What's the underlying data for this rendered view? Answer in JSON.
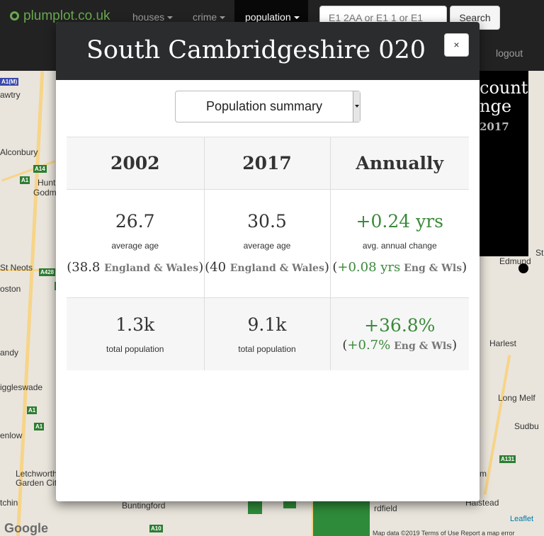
{
  "navbar": {
    "brand": "plumplot.co.uk",
    "items": [
      {
        "label": "houses"
      },
      {
        "label": "crime"
      },
      {
        "label": "population"
      }
    ],
    "search_placeholder": "E1 2AA or E1 1 or E1",
    "search_button": "Search",
    "logout": "logout"
  },
  "map": {
    "labels": [
      "Alconbury",
      "Hunt",
      "Godm",
      "St Neots",
      "oston",
      "andy",
      "iggleswade",
      "enlow",
      "Letchworth",
      "Garden City",
      "tchin",
      "Buntingford",
      "Harlest",
      "Long Melf",
      "Sudbu",
      "Halstead",
      "rdfield",
      "m",
      "St",
      "Edmund",
      "awtry"
    ],
    "shields": [
      "A1(M)",
      "A14",
      "A1",
      "A428",
      "A1",
      "A1",
      "A10",
      "A131"
    ],
    "side_panel": {
      "line1": "count",
      "line2": "nge",
      "line3": "2017"
    },
    "google": "Google",
    "leaflet": "Leaflet",
    "attribution": "Map data ©2019   Terms of Use   Report a map error"
  },
  "modal": {
    "title": "South Cambridgeshire 020",
    "close": "×",
    "select_value": "Population summary",
    "columns": [
      "2002",
      "2017",
      "Annually"
    ],
    "age_row": {
      "y2002": {
        "value": "26.7",
        "label": "average age",
        "cmp_prefix": "(38.8 ",
        "cmp_region": "England & Wales",
        "cmp_suffix": ")"
      },
      "y2017": {
        "value": "30.5",
        "label": "average age",
        "cmp_prefix": "(40 ",
        "cmp_region": "England & Wales",
        "cmp_suffix": ")"
      },
      "annual": {
        "value": "+0.24 yrs",
        "label": "avg. annual change",
        "cmp_open": "(",
        "cmp_value": "+0.08 yrs",
        "cmp_region": " Eng & Wls",
        "cmp_suffix": ")"
      }
    },
    "pop_row": {
      "y2002": {
        "value": "1.3k",
        "label": "total population"
      },
      "y2017": {
        "value": "9.1k",
        "label": "total population"
      },
      "annual": {
        "value": "+36.8%",
        "cmp_open": "(",
        "cmp_value": "+0.7%",
        "cmp_region": " Eng & Wls",
        "cmp_suffix": ")"
      }
    }
  }
}
